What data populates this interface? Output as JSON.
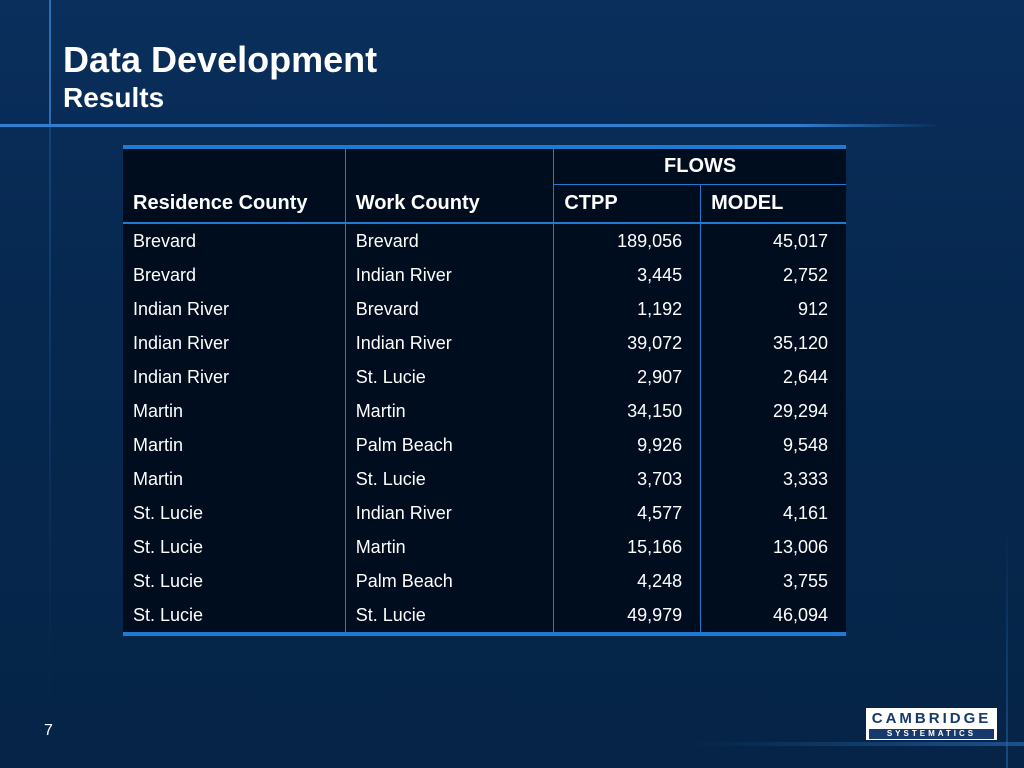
{
  "slide": {
    "title": "Data Development",
    "subtitle": "Results",
    "page_number": "7"
  },
  "table": {
    "group_header": "FLOWS",
    "headers": {
      "residence": "Residence County",
      "work": "Work County",
      "ctpp": "CTPP",
      "model": "MODEL"
    },
    "rows": [
      {
        "residence": "Brevard",
        "work": "Brevard",
        "ctpp": "189,056",
        "model": "45,017"
      },
      {
        "residence": "Brevard",
        "work": "Indian River",
        "ctpp": "3,445",
        "model": "2,752"
      },
      {
        "residence": "Indian River",
        "work": "Brevard",
        "ctpp": "1,192",
        "model": "912"
      },
      {
        "residence": "Indian River",
        "work": "Indian River",
        "ctpp": "39,072",
        "model": "35,120"
      },
      {
        "residence": "Indian River",
        "work": "St. Lucie",
        "ctpp": "2,907",
        "model": "2,644"
      },
      {
        "residence": "Martin",
        "work": "Martin",
        "ctpp": "34,150",
        "model": "29,294"
      },
      {
        "residence": "Martin",
        "work": "Palm Beach",
        "ctpp": "9,926",
        "model": "9,548"
      },
      {
        "residence": "Martin",
        "work": "St. Lucie",
        "ctpp": "3,703",
        "model": "3,333"
      },
      {
        "residence": "St. Lucie",
        "work": "Indian River",
        "ctpp": "4,577",
        "model": "4,161"
      },
      {
        "residence": "St. Lucie",
        "work": "Martin",
        "ctpp": "15,166",
        "model": "13,006"
      },
      {
        "residence": "St. Lucie",
        "work": "Palm Beach",
        "ctpp": "4,248",
        "model": "3,755"
      },
      {
        "residence": "St. Lucie",
        "work": "St. Lucie",
        "ctpp": "49,979",
        "model": "46,094"
      }
    ]
  },
  "logo": {
    "name": "CAMBRIDGE",
    "tagline": "SYSTEMATICS"
  },
  "colors": {
    "background": "#0a2f5c",
    "accent": "#1e7bd1",
    "table_background": "#000d1f"
  }
}
